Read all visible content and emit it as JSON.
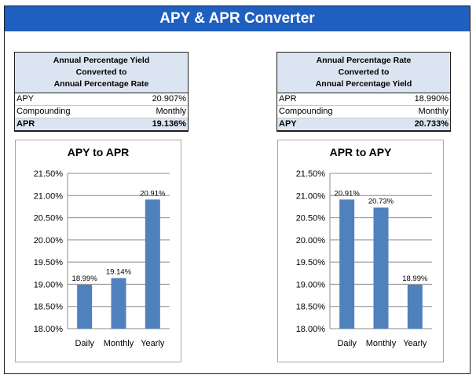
{
  "banner": {
    "title": "APY & APR Converter"
  },
  "left_panel": {
    "header": [
      "Annual Percentage Yield",
      "Converted to",
      "Annual Percentage Rate"
    ],
    "rows": [
      {
        "label": "APY",
        "value": "20.907%"
      },
      {
        "label": "Compounding",
        "value": "Monthly"
      },
      {
        "label": "APR",
        "value": "19.136%"
      }
    ]
  },
  "right_panel": {
    "header": [
      "Annual Percentage Rate",
      "Converted to",
      "Annual Percentage Yield"
    ],
    "rows": [
      {
        "label": "APR",
        "value": "18.990%"
      },
      {
        "label": "Compounding",
        "value": "Monthly"
      },
      {
        "label": "APY",
        "value": "20.733%"
      }
    ]
  },
  "colors": {
    "banner": "#1f5fbf",
    "bar": "#4f81bd",
    "header_fill": "#dbe5f1"
  },
  "chart_data": [
    {
      "type": "bar",
      "title": "APY to APR",
      "categories": [
        "Daily",
        "Monthly",
        "Yearly"
      ],
      "values": [
        18.99,
        19.14,
        20.91
      ],
      "data_labels": [
        "18.99%",
        "19.14%",
        "20.91%"
      ],
      "ylim": [
        18.0,
        21.5
      ],
      "yticks": [
        "18.00%",
        "18.50%",
        "19.00%",
        "19.50%",
        "20.00%",
        "20.50%",
        "21.00%",
        "21.50%"
      ],
      "grid": true,
      "legend": "none"
    },
    {
      "type": "bar",
      "title": "APR to APY",
      "categories": [
        "Daily",
        "Monthly",
        "Yearly"
      ],
      "values": [
        20.91,
        20.73,
        18.99
      ],
      "data_labels": [
        "20.91%",
        "20.73%",
        "18.99%"
      ],
      "ylim": [
        18.0,
        21.5
      ],
      "yticks": [
        "18.00%",
        "18.50%",
        "19.00%",
        "19.50%",
        "20.00%",
        "20.50%",
        "21.00%",
        "21.50%"
      ],
      "grid": true,
      "legend": "none"
    }
  ]
}
